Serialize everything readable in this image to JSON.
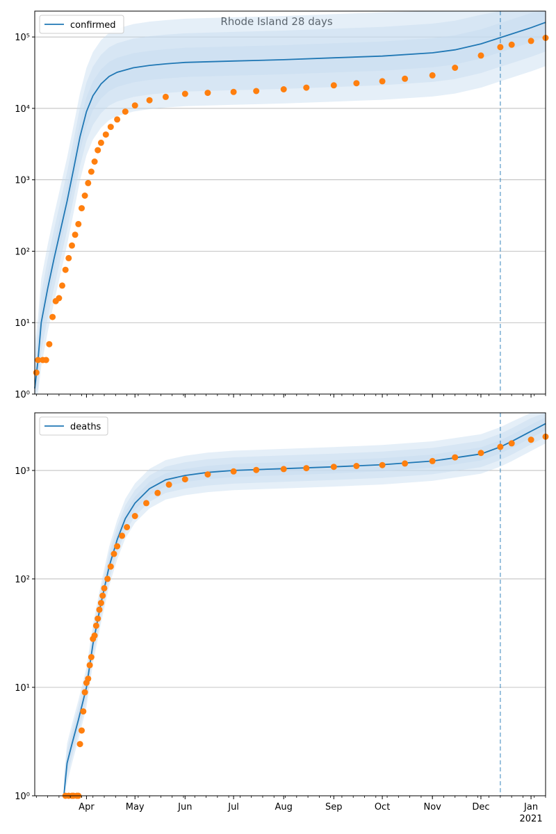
{
  "figure": {
    "title": "Rhode Island 28 days",
    "colors": {
      "model": "#1f77b4",
      "observed": "#ff7f0e",
      "grid": "#b0b0b0",
      "band": "#c6dbef"
    }
  },
  "chart_data": [
    {
      "type": "line",
      "name": "confirmed-panel",
      "yscale": "log",
      "ylim": [
        1,
        230000
      ],
      "xlim": [
        "2020-02-29",
        "2021-01-10"
      ],
      "grid": "horizontal major",
      "legend": {
        "label": "confirmed",
        "placement": "top-left"
      },
      "forecast_start": "2020-12-13",
      "y_ticks": [
        {
          "value": 1,
          "label": "10⁰"
        },
        {
          "value": 10,
          "label": "10¹"
        },
        {
          "value": 100,
          "label": "10²"
        },
        {
          "value": 1000,
          "label": "10³"
        },
        {
          "value": 10000,
          "label": "10⁴"
        },
        {
          "value": 100000,
          "label": "10⁵"
        }
      ],
      "model": {
        "x": [
          "2020-02-29",
          "2020-03-02",
          "2020-03-04",
          "2020-03-08",
          "2020-03-12",
          "2020-03-16",
          "2020-03-20",
          "2020-03-24",
          "2020-03-28",
          "2020-04-01",
          "2020-04-05",
          "2020-04-10",
          "2020-04-15",
          "2020-04-20",
          "2020-04-30",
          "2020-05-10",
          "2020-05-20",
          "2020-06-01",
          "2020-07-01",
          "2020-08-01",
          "2020-09-01",
          "2020-10-01",
          "2020-11-01",
          "2020-11-15",
          "2020-12-01",
          "2020-12-13",
          "2020-12-20",
          "2021-01-01",
          "2021-01-10"
        ],
        "y": [
          1.2,
          3,
          10,
          30,
          80,
          200,
          500,
          1400,
          4000,
          9000,
          15000,
          22000,
          28000,
          32000,
          37000,
          40000,
          42000,
          44000,
          46000,
          48000,
          51000,
          54000,
          60000,
          66000,
          80000,
          98000,
          110000,
          135000,
          160000
        ],
        "spread": 1.6
      },
      "observed": {
        "x": [
          "2020-03-01",
          "2020-03-02",
          "2020-03-05",
          "2020-03-07",
          "2020-03-09",
          "2020-03-11",
          "2020-03-13",
          "2020-03-15",
          "2020-03-17",
          "2020-03-19",
          "2020-03-21",
          "2020-03-23",
          "2020-03-25",
          "2020-03-27",
          "2020-03-29",
          "2020-03-31",
          "2020-04-02",
          "2020-04-04",
          "2020-04-06",
          "2020-04-08",
          "2020-04-10",
          "2020-04-13",
          "2020-04-16",
          "2020-04-20",
          "2020-04-25",
          "2020-05-01",
          "2020-05-10",
          "2020-05-20",
          "2020-06-01",
          "2020-06-15",
          "2020-07-01",
          "2020-07-15",
          "2020-08-01",
          "2020-08-15",
          "2020-09-01",
          "2020-09-15",
          "2020-10-01",
          "2020-10-15",
          "2020-11-01",
          "2020-11-15",
          "2020-12-01",
          "2020-12-13",
          "2020-12-20",
          "2021-01-01",
          "2021-01-10"
        ],
        "y": [
          2,
          3,
          3,
          3,
          5,
          12,
          20,
          22,
          33,
          55,
          80,
          120,
          170,
          240,
          400,
          600,
          900,
          1300,
          1800,
          2600,
          3300,
          4300,
          5500,
          7000,
          9000,
          11000,
          13000,
          14500,
          16000,
          16500,
          17000,
          17500,
          18500,
          19500,
          21000,
          22500,
          24000,
          26000,
          29000,
          37000,
          55000,
          72000,
          78000,
          88000,
          97000
        ]
      }
    },
    {
      "type": "line",
      "name": "deaths-panel",
      "yscale": "log",
      "ylim": [
        1,
        3400
      ],
      "xlim": [
        "2020-02-29",
        "2021-01-10"
      ],
      "grid": "horizontal major",
      "legend": {
        "label": "deaths",
        "placement": "top-left"
      },
      "forecast_start": "2020-12-13",
      "y_ticks": [
        {
          "value": 1,
          "label": "10⁰"
        },
        {
          "value": 10,
          "label": "10¹"
        },
        {
          "value": 100,
          "label": "10²"
        },
        {
          "value": 1000,
          "label": "10³"
        }
      ],
      "x_ticks": [
        {
          "date": "2020-04-01",
          "label": "Apr"
        },
        {
          "date": "2020-05-01",
          "label": "May"
        },
        {
          "date": "2020-06-01",
          "label": "Jun"
        },
        {
          "date": "2020-07-01",
          "label": "Jul"
        },
        {
          "date": "2020-08-01",
          "label": "Aug"
        },
        {
          "date": "2020-09-01",
          "label": "Sep"
        },
        {
          "date": "2020-10-01",
          "label": "Oct"
        },
        {
          "date": "2020-11-01",
          "label": "Nov"
        },
        {
          "date": "2020-12-01",
          "label": "Dec"
        },
        {
          "date": "2021-01-01",
          "label": "Jan"
        }
      ],
      "x_year_label": "2021",
      "model": {
        "x": [
          "2020-03-18",
          "2020-03-20",
          "2020-03-23",
          "2020-03-27",
          "2020-04-01",
          "2020-04-05",
          "2020-04-10",
          "2020-04-15",
          "2020-04-20",
          "2020-04-25",
          "2020-05-01",
          "2020-05-10",
          "2020-05-20",
          "2020-06-01",
          "2020-06-15",
          "2020-07-01",
          "2020-08-01",
          "2020-09-01",
          "2020-10-01",
          "2020-11-01",
          "2020-12-01",
          "2020-12-13",
          "2020-12-20",
          "2021-01-01",
          "2021-01-10"
        ],
        "y": [
          1,
          2,
          3,
          5,
          10,
          25,
          60,
          130,
          230,
          360,
          500,
          680,
          820,
          900,
          960,
          1000,
          1040,
          1080,
          1130,
          1220,
          1420,
          1650,
          1850,
          2300,
          2700
        ],
        "spread": 1.15
      },
      "observed": {
        "x": [
          "2020-03-19",
          "2020-03-21",
          "2020-03-23",
          "2020-03-24",
          "2020-03-26",
          "2020-03-27",
          "2020-03-28",
          "2020-03-29",
          "2020-03-30",
          "2020-03-31",
          "2020-04-01",
          "2020-04-02",
          "2020-04-03",
          "2020-04-04",
          "2020-04-05",
          "2020-04-06",
          "2020-04-07",
          "2020-04-08",
          "2020-04-09",
          "2020-04-10",
          "2020-04-11",
          "2020-04-12",
          "2020-04-14",
          "2020-04-16",
          "2020-04-18",
          "2020-04-20",
          "2020-04-23",
          "2020-04-26",
          "2020-05-01",
          "2020-05-08",
          "2020-05-15",
          "2020-05-22",
          "2020-06-01",
          "2020-06-15",
          "2020-07-01",
          "2020-07-15",
          "2020-08-01",
          "2020-08-15",
          "2020-09-01",
          "2020-09-15",
          "2020-10-01",
          "2020-10-15",
          "2020-11-01",
          "2020-11-15",
          "2020-12-01",
          "2020-12-13",
          "2020-12-20",
          "2021-01-01",
          "2021-01-10"
        ],
        "y": [
          1,
          1,
          1,
          1,
          1,
          1,
          3,
          4,
          6,
          9,
          11,
          12,
          16,
          19,
          28,
          30,
          37,
          43,
          52,
          60,
          70,
          82,
          100,
          130,
          170,
          200,
          250,
          300,
          380,
          500,
          620,
          740,
          830,
          920,
          980,
          1010,
          1030,
          1050,
          1080,
          1100,
          1120,
          1160,
          1220,
          1320,
          1450,
          1650,
          1780,
          1920,
          2050
        ]
      }
    }
  ]
}
